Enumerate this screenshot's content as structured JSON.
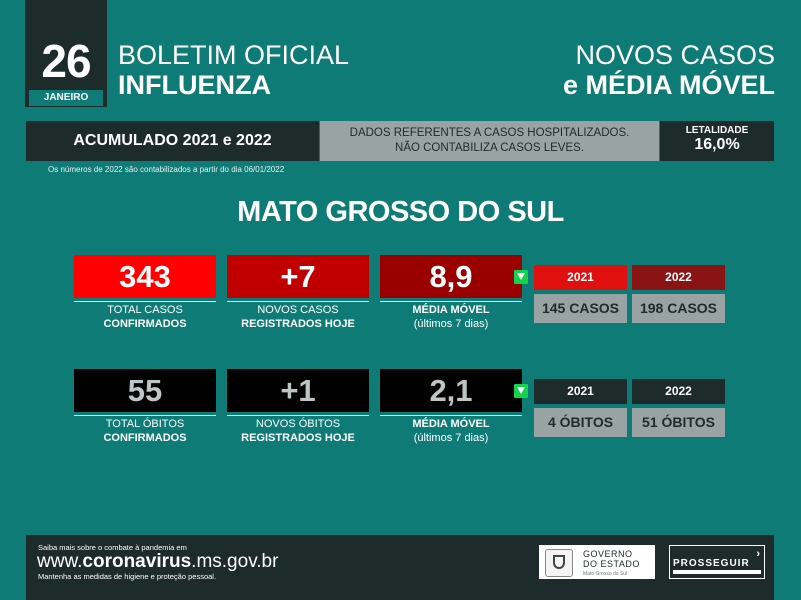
{
  "header": {
    "day": "26",
    "month": "JANEIRO",
    "title_line1": "BOLETIM OFICIAL",
    "title_line2": "INFLUENZA",
    "right_line1": "NOVOS CASOS",
    "right_line2": "e MÉDIA MÓVEL"
  },
  "info": {
    "accumulated": "ACUMULADO 2021 e 2022",
    "note_line1": "DADOS REFERENTES A CASOS HOSPITALIZADOS.",
    "note_line2": "NÃO CONTABILIZA CASOS LEVES.",
    "lethality_label": "LETALIDADE",
    "lethality_value": "16,0%",
    "footnote": "Os números de 2022 são contabilizados a partir do dia 06/01/2022"
  },
  "region": "MATO GROSSO DO SUL",
  "cases": {
    "total": "343",
    "total_label1": "TOTAL CASOS",
    "total_label2": "CONFIRMADOS",
    "new": "+7",
    "new_label1": "NOVOS CASOS",
    "new_label2": "REGISTRADOS HOJE",
    "avg": "8,9",
    "avg_label1": "MÉDIA MÓVEL",
    "avg_label2": "(últimos 7 dias)",
    "year1": "2021",
    "year1_value": "145 CASOS",
    "year2": "2022",
    "year2_value": "198 CASOS"
  },
  "deaths": {
    "total": "55",
    "total_label1": "TOTAL ÓBITOS",
    "total_label2": "CONFIRMADOS",
    "new": "+1",
    "new_label1": "NOVOS ÓBITOS",
    "new_label2": "REGISTRADOS HOJE",
    "avg": "2,1",
    "avg_label1": "MÉDIA MÓVEL",
    "avg_label2": "(últimos 7 dias)",
    "year1": "2021",
    "year1_value": "4 ÓBITOS",
    "year2": "2022",
    "year2_value": "51 ÓBITOS"
  },
  "footer": {
    "small1": "Saiba mais sobre o combate à pandemia em",
    "url_pre": "www.",
    "url_bold": "coronavirus",
    "url_post": ".ms.gov.br",
    "small2": "Mantenha as medidas de higiene e proteção pessoal.",
    "gov_line1": "GOVERNO",
    "gov_line2": "DO ESTADO",
    "gov_sub": "Mato Grosso do Sul",
    "prosseguir": "PROSSEGUIR"
  },
  "colors": {
    "background": "#0f7b77",
    "dark": "#1e2b2b",
    "red_bright": "#ff0000",
    "red_mid": "#c00000",
    "red_dark": "#9b0000",
    "gray": "#9aa3a3",
    "green_arrow": "#13d44a"
  },
  "icons": {
    "trend": "arrow-down-icon"
  }
}
